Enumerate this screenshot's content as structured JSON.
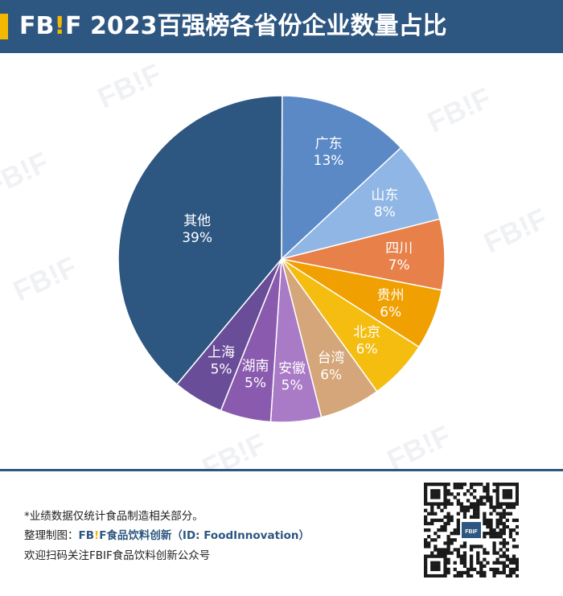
{
  "header": {
    "brand_prefix": "FB",
    "brand_mark": "!",
    "brand_suffix": "F",
    "title": " 2023百强榜各省份企业数量占比",
    "accent_color": "#f5b800",
    "bg_color": "#2d5680"
  },
  "watermark": "FB!F",
  "chart_data": {
    "type": "pie",
    "title": "FB!F 2023百强榜各省份企业数量占比",
    "unit": "%",
    "slices": [
      {
        "label": "广东",
        "value": 13,
        "display": "13%",
        "color": "#5b89c6"
      },
      {
        "label": "山东",
        "value": 8,
        "display": "8%",
        "color": "#8fb6e4"
      },
      {
        "label": "四川",
        "value": 7,
        "display": "7%",
        "color": "#e8804a"
      },
      {
        "label": "贵州",
        "value": 6,
        "display": "6%",
        "color": "#f0a000"
      },
      {
        "label": "北京",
        "value": 6,
        "display": "6%",
        "color": "#f5bd10"
      },
      {
        "label": "台湾",
        "value": 6,
        "display": "6%",
        "color": "#d4a679"
      },
      {
        "label": "安徽",
        "value": 5,
        "display": "5%",
        "color": "#a97ac6"
      },
      {
        "label": "湖南",
        "value": 5,
        "display": "5%",
        "color": "#8a5aae"
      },
      {
        "label": "上海",
        "value": 5,
        "display": "5%",
        "color": "#6a4d98"
      },
      {
        "label": "其他",
        "value": 39,
        "display": "39%",
        "color": "#2d5680"
      }
    ]
  },
  "footer": {
    "note": "*业绩数据仅统计食品制造相关部分。",
    "credit_prefix": "整理制图：",
    "credit_brand_prefix": "FB",
    "credit_brand_mark": "!",
    "credit_brand_suffix": "F",
    "credit_name": "食品饮料创新",
    "credit_id": "（ID: FoodInnovation）",
    "follow": "欢迎扫码关注FBIF食品饮料创新公众号",
    "qr_center_logo": "FBIF"
  }
}
